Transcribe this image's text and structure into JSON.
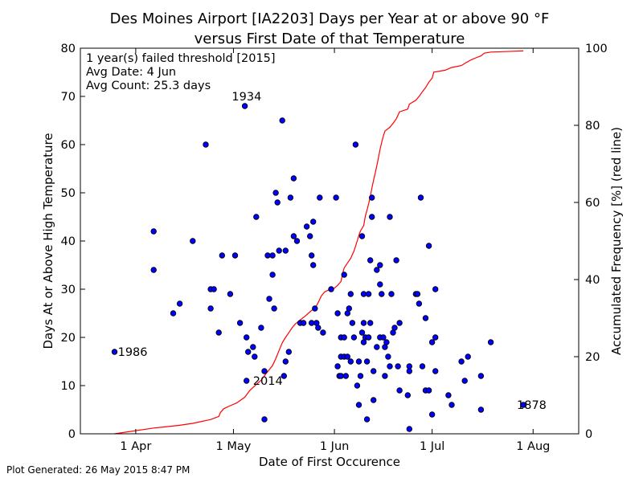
{
  "chart_data": {
    "type": "scatter",
    "title_line1": "Des Moines Airport [IA2203] Days per Year at or above 90 °F",
    "title_line2": "versus First Date of that Temperature",
    "xlabel": "Date of First Occurence",
    "ylabel": "Days At or Above High Temperature",
    "y2label": "Accumulated Frequency [%] (red line)",
    "x_unit": "day of year",
    "xlim": [
      74,
      227
    ],
    "ylim": [
      0,
      80
    ],
    "y2lim": [
      0,
      100
    ],
    "x_ticks": [
      {
        "label": "1 Apr",
        "value": 91
      },
      {
        "label": "1 May",
        "value": 121
      },
      {
        "label": "1 Jun",
        "value": 152
      },
      {
        "label": "1 Jul",
        "value": 182
      },
      {
        "label": "1 Aug",
        "value": 213
      }
    ],
    "y_ticks": [
      0,
      10,
      20,
      30,
      40,
      50,
      60,
      70,
      80
    ],
    "y2_ticks": [
      0,
      20,
      40,
      60,
      80,
      100
    ],
    "info_lines": [
      "1 year(s) failed threshold [2015]",
      "Avg Date: 4 Jun",
      "Avg Count: 25.3 days"
    ],
    "annotations": [
      {
        "text": "1934",
        "x": 120.5,
        "y": 70
      },
      {
        "text": "1986",
        "x": 85.5,
        "y": 17
      },
      {
        "text": "2014",
        "x": 127,
        "y": 11
      },
      {
        "text": "1878",
        "x": 208,
        "y": 6
      }
    ],
    "point_color": "#0000ff",
    "line_color": "#ff0000",
    "points": [
      [
        84.5,
        17
      ],
      [
        96.5,
        42
      ],
      [
        96.5,
        34
      ],
      [
        102.5,
        25
      ],
      [
        104.5,
        27
      ],
      [
        108.5,
        40
      ],
      [
        112.5,
        60
      ],
      [
        114,
        30
      ],
      [
        115,
        30
      ],
      [
        114,
        26
      ],
      [
        116.5,
        21
      ],
      [
        117.5,
        37
      ],
      [
        120,
        29
      ],
      [
        121.5,
        37
      ],
      [
        123,
        23
      ],
      [
        124.5,
        68
      ],
      [
        125,
        20
      ],
      [
        125.5,
        17
      ],
      [
        125,
        11
      ],
      [
        127,
        18
      ],
      [
        127.5,
        16
      ],
      [
        128,
        45
      ],
      [
        129.5,
        22
      ],
      [
        130.5,
        3
      ],
      [
        130.5,
        13
      ],
      [
        131.5,
        37
      ],
      [
        132,
        28
      ],
      [
        133,
        37
      ],
      [
        133,
        33
      ],
      [
        133.5,
        26
      ],
      [
        134,
        50
      ],
      [
        134.5,
        48
      ],
      [
        135,
        38
      ],
      [
        136,
        65
      ],
      [
        136.5,
        12
      ],
      [
        137,
        38
      ],
      [
        137,
        15
      ],
      [
        138,
        17
      ],
      [
        138.5,
        49
      ],
      [
        139.5,
        41
      ],
      [
        139.5,
        53
      ],
      [
        140.5,
        40
      ],
      [
        141.5,
        23
      ],
      [
        142.5,
        23
      ],
      [
        143.5,
        43
      ],
      [
        144.5,
        41
      ],
      [
        145,
        23
      ],
      [
        145,
        37
      ],
      [
        145.5,
        35
      ],
      [
        145.5,
        44
      ],
      [
        146,
        26
      ],
      [
        146.5,
        23
      ],
      [
        147,
        22
      ],
      [
        147.5,
        49
      ],
      [
        148.5,
        21
      ],
      [
        151,
        30
      ],
      [
        152.5,
        49
      ],
      [
        153,
        25
      ],
      [
        153,
        14
      ],
      [
        153.5,
        12
      ],
      [
        154,
        20
      ],
      [
        154,
        16
      ],
      [
        154,
        12
      ],
      [
        155,
        20
      ],
      [
        155,
        16
      ],
      [
        155,
        33
      ],
      [
        155.5,
        12
      ],
      [
        156,
        25
      ],
      [
        156,
        16
      ],
      [
        156.5,
        26
      ],
      [
        157,
        29
      ],
      [
        157,
        15
      ],
      [
        157.5,
        23
      ],
      [
        158,
        20
      ],
      [
        158.5,
        60
      ],
      [
        159,
        10
      ],
      [
        159.5,
        6
      ],
      [
        159.5,
        15
      ],
      [
        160,
        12
      ],
      [
        160.5,
        21
      ],
      [
        160.5,
        41
      ],
      [
        161,
        23
      ],
      [
        161,
        29
      ],
      [
        161,
        19
      ],
      [
        161.5,
        20
      ],
      [
        162,
        3
      ],
      [
        162,
        15
      ],
      [
        162.5,
        29
      ],
      [
        162.5,
        20
      ],
      [
        163,
        23
      ],
      [
        163,
        36
      ],
      [
        163.5,
        45
      ],
      [
        163.5,
        49
      ],
      [
        164,
        13
      ],
      [
        164,
        7
      ],
      [
        165,
        34
      ],
      [
        165,
        18
      ],
      [
        166,
        20
      ],
      [
        166,
        31
      ],
      [
        166,
        35
      ],
      [
        166.5,
        29
      ],
      [
        167,
        20
      ],
      [
        167.5,
        12
      ],
      [
        167.5,
        18
      ],
      [
        168,
        19
      ],
      [
        168.5,
        16
      ],
      [
        169,
        14
      ],
      [
        169,
        45
      ],
      [
        169.5,
        29
      ],
      [
        170,
        21
      ],
      [
        170.5,
        22
      ],
      [
        171,
        36
      ],
      [
        171.5,
        14
      ],
      [
        172,
        9
      ],
      [
        172,
        23
      ],
      [
        174.5,
        8
      ],
      [
        175,
        1
      ],
      [
        175,
        13
      ],
      [
        175,
        14
      ],
      [
        177,
        29
      ],
      [
        177.5,
        29
      ],
      [
        178,
        27
      ],
      [
        178.5,
        49
      ],
      [
        179,
        14
      ],
      [
        180,
        24
      ],
      [
        180,
        9
      ],
      [
        181,
        9
      ],
      [
        181,
        39
      ],
      [
        182,
        19
      ],
      [
        182,
        4
      ],
      [
        183,
        20
      ],
      [
        183,
        30
      ],
      [
        183,
        13
      ],
      [
        187,
        8
      ],
      [
        188,
        6
      ],
      [
        191,
        15
      ],
      [
        192,
        11
      ],
      [
        193,
        16
      ],
      [
        197,
        12
      ],
      [
        197,
        5
      ],
      [
        200,
        19
      ],
      [
        210,
        6
      ]
    ],
    "accum_line": [
      [
        84.5,
        0
      ],
      [
        96.5,
        1.5
      ],
      [
        100,
        1.8
      ],
      [
        104.5,
        2.2
      ],
      [
        108.5,
        2.7
      ],
      [
        114,
        3.7
      ],
      [
        116.5,
        4.5
      ],
      [
        117,
        5.5
      ],
      [
        118,
        6.5
      ],
      [
        120,
        7.3
      ],
      [
        122,
        8
      ],
      [
        124.5,
        9.5
      ],
      [
        126,
        11.2
      ],
      [
        128,
        12.8
      ],
      [
        129.5,
        13.9
      ],
      [
        131,
        15.6
      ],
      [
        133,
        17.7
      ],
      [
        134,
        19.5
      ],
      [
        135,
        21.6
      ],
      [
        136,
        23.6
      ],
      [
        137,
        25
      ],
      [
        138,
        26.2
      ],
      [
        139,
        27.5
      ],
      [
        140,
        28.5
      ],
      [
        141.5,
        29.5
      ],
      [
        143,
        30.5
      ],
      [
        145,
        32
      ],
      [
        146,
        32.5
      ],
      [
        147,
        34
      ],
      [
        148,
        35.8
      ],
      [
        149,
        36.8
      ],
      [
        150,
        37.2
      ],
      [
        152,
        37.8
      ],
      [
        153,
        38.5
      ],
      [
        154,
        39.5
      ],
      [
        154.5,
        41.5
      ],
      [
        155,
        43
      ],
      [
        156,
        44.3
      ],
      [
        157,
        45.5
      ],
      [
        158,
        47.4
      ],
      [
        159,
        50
      ],
      [
        159.5,
        51.5
      ],
      [
        160,
        52.6
      ],
      [
        161,
        54
      ],
      [
        161.5,
        56.5
      ],
      [
        162,
        58
      ],
      [
        162.5,
        59.6
      ],
      [
        163,
        61.5
      ],
      [
        163.5,
        63.7
      ],
      [
        164,
        65.7
      ],
      [
        164.5,
        67.5
      ],
      [
        165,
        69.5
      ],
      [
        165.5,
        71.5
      ],
      [
        166,
        73.7
      ],
      [
        166.5,
        75.5
      ],
      [
        167,
        77.2
      ],
      [
        167.5,
        78.5
      ],
      [
        169,
        79.5
      ],
      [
        170,
        80.5
      ],
      [
        171,
        81.7
      ],
      [
        172,
        83.5
      ],
      [
        174.5,
        84.2
      ],
      [
        175,
        85.5
      ],
      [
        177,
        86.5
      ],
      [
        178,
        87.5
      ],
      [
        179,
        88.7
      ],
      [
        180,
        89.8
      ],
      [
        181,
        91.2
      ],
      [
        182,
        92.2
      ],
      [
        182.5,
        93.8
      ],
      [
        186,
        94.3
      ],
      [
        188,
        95
      ],
      [
        191,
        95.5
      ],
      [
        192.5,
        96.3
      ],
      [
        194,
        97
      ],
      [
        196,
        97.7
      ],
      [
        197,
        98
      ],
      [
        198,
        98.7
      ],
      [
        200,
        99
      ],
      [
        210,
        99.3
      ]
    ],
    "footer": "Plot Generated: 26 May 2015 8:47 PM"
  }
}
